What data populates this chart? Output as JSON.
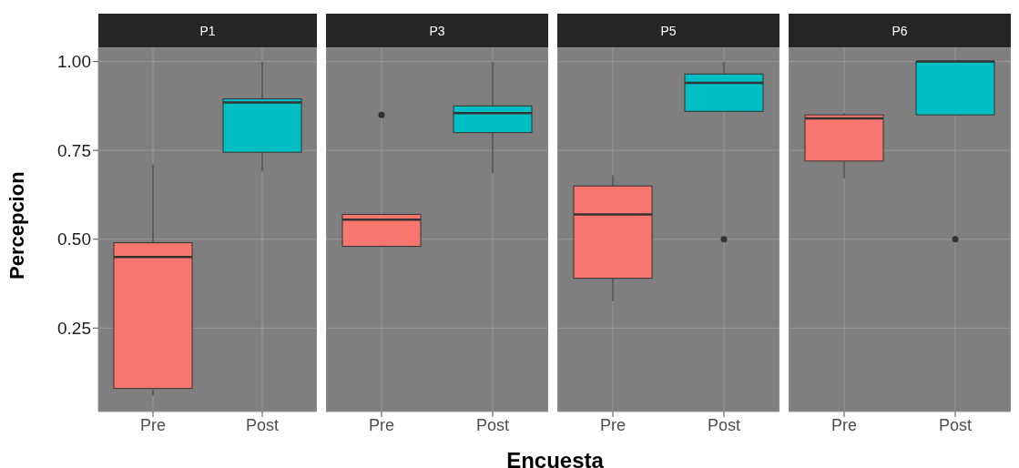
{
  "chart_data": [
    {
      "type": "box",
      "title": "P1",
      "ylabel": "Percepcion",
      "categories": [
        "Pre",
        "Post"
      ],
      "colors": [
        "#f8766d",
        "#00bfc4"
      ],
      "ylim": [
        0.015,
        1.04
      ],
      "yticks": [
        {
          "value": 0.25,
          "label": "0.25"
        },
        {
          "value": 0.5,
          "label": "0.50"
        },
        {
          "value": 0.75,
          "label": "0.75"
        },
        {
          "value": 1,
          "label": "1.00"
        }
      ],
      "grid": true,
      "legend": false,
      "boxes": [
        {
          "low": 0.06,
          "q1": 0.08,
          "median": 0.45,
          "q3": 0.49,
          "high": 0.71
        },
        {
          "low": 0.69,
          "q1": 0.745,
          "median": 0.885,
          "q3": 0.895,
          "high": 1.0
        }
      ]
    },
    {
      "type": "box",
      "title": "P3",
      "xlabel": "Encuesta",
      "categories": [
        "Pre",
        "Post"
      ],
      "colors": [
        "#f8766d",
        "#00bfc4"
      ],
      "ylim": [
        0.015,
        1.04
      ],
      "yticks": [
        0.25,
        0.5,
        0.75,
        1
      ],
      "grid": true,
      "legend": false,
      "tick_labels": "x",
      "boxes": [
        {
          "low": 0.48,
          "q1": 0.48,
          "median": 0.555,
          "q3": 0.57,
          "high": 0.57,
          "outliers": [
            0.85
          ]
        },
        {
          "low": 0.685,
          "q1": 0.8,
          "median": 0.855,
          "q3": 0.875,
          "high": 1.0
        }
      ]
    },
    {
      "type": "box",
      "title": "P5",
      "categories": [
        "Pre",
        "Post"
      ],
      "colors": [
        "#f8766d",
        "#00bfc4"
      ],
      "ylim": [
        0.015,
        1.04
      ],
      "yticks": [
        0.25,
        0.5,
        0.75,
        1
      ],
      "grid": true,
      "legend": false,
      "tick_labels": "x",
      "boxes": [
        {
          "low": 0.325,
          "q1": 0.39,
          "median": 0.57,
          "q3": 0.65,
          "high": 0.68
        },
        {
          "low": 0.86,
          "q1": 0.86,
          "median": 0.94,
          "q3": 0.965,
          "high": 1.0,
          "outliers": [
            0.5
          ]
        }
      ]
    },
    {
      "type": "box",
      "title": "P6",
      "categories": [
        "Pre",
        "Post"
      ],
      "colors": [
        "#f8766d",
        "#00bfc4"
      ],
      "ylim": [
        0.015,
        1.04
      ],
      "yticks": [
        0.25,
        0.5,
        0.75,
        1
      ],
      "grid": true,
      "legend": false,
      "tick_labels": "x",
      "boxes": [
        {
          "low": 0.67,
          "q1": 0.72,
          "median": 0.84,
          "q3": 0.85,
          "high": 0.855
        },
        {
          "low": 0.85,
          "q1": 0.85,
          "median": 1.0,
          "q3": 1.0,
          "high": 1.0,
          "outliers": [
            0.5
          ]
        }
      ]
    }
  ]
}
